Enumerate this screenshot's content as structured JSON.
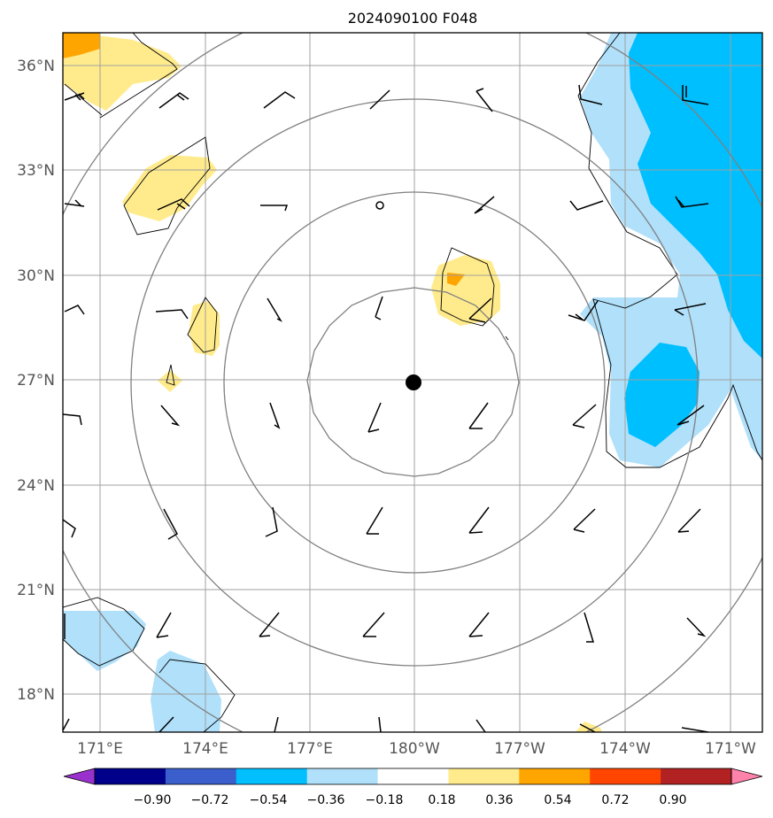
{
  "title": "2024090100 F048",
  "lat_labels": [
    "36°N",
    "33°N",
    "30°N",
    "27°N",
    "24°N",
    "21°N",
    "18°N"
  ],
  "lon_labels": [
    "171°E",
    "174°E",
    "177°E",
    "180°W",
    "177°W",
    "174°W",
    "171°W"
  ],
  "colorbar": {
    "colors": [
      "#9932cc",
      "#00008b",
      "#3a5fcd",
      "#00bfff",
      "#b0e0fa",
      "#ffffff",
      "#ffeb8c",
      "#ffa500",
      "#ff4500",
      "#b22222",
      "#ff82ab"
    ],
    "labels": [
      "−0.90",
      "−0.72",
      "−0.54",
      "−0.36",
      "−0.18",
      "0.18",
      "0.36",
      "0.54",
      "0.72",
      "0.90"
    ]
  },
  "storm_center_icon": "filled-circle",
  "range_rings": 4
}
